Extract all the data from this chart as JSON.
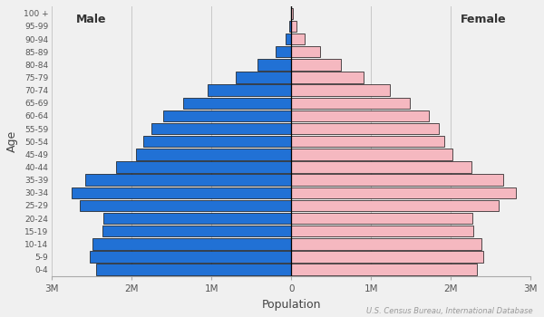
{
  "age_groups": [
    "0-4",
    "5-9",
    "10-14",
    "15-19",
    "20-24",
    "25-29",
    "30-34",
    "35-39",
    "40-44",
    "45-49",
    "50-54",
    "55-59",
    "60-64",
    "65-69",
    "70-74",
    "75-79",
    "80-84",
    "85-89",
    "90-94",
    "95-99",
    "100 +"
  ],
  "male": [
    2450000,
    2530000,
    2490000,
    2370000,
    2350000,
    2650000,
    2750000,
    2580000,
    2200000,
    1950000,
    1850000,
    1750000,
    1600000,
    1350000,
    1050000,
    700000,
    420000,
    200000,
    75000,
    22000,
    5000
  ],
  "female": [
    2330000,
    2410000,
    2380000,
    2280000,
    2270000,
    2600000,
    2820000,
    2660000,
    2260000,
    2020000,
    1920000,
    1850000,
    1720000,
    1490000,
    1230000,
    900000,
    620000,
    360000,
    165000,
    60000,
    18000
  ],
  "male_color": "#2171d5",
  "female_color": "#f5b8c0",
  "bar_edge_color": "#111111",
  "background_color": "#f0f0f0",
  "xlabel": "Population",
  "ylabel": "Age",
  "male_label": "Male",
  "female_label": "Female",
  "source_text": "U.S. Census Bureau, International Database",
  "xlim": 3000000,
  "xtick_values": [
    -3000000,
    -2000000,
    -1000000,
    0,
    1000000,
    2000000,
    3000000
  ],
  "xtick_labels": [
    "3M",
    "2M",
    "1M",
    "0",
    "1M",
    "2M",
    "3M"
  ]
}
